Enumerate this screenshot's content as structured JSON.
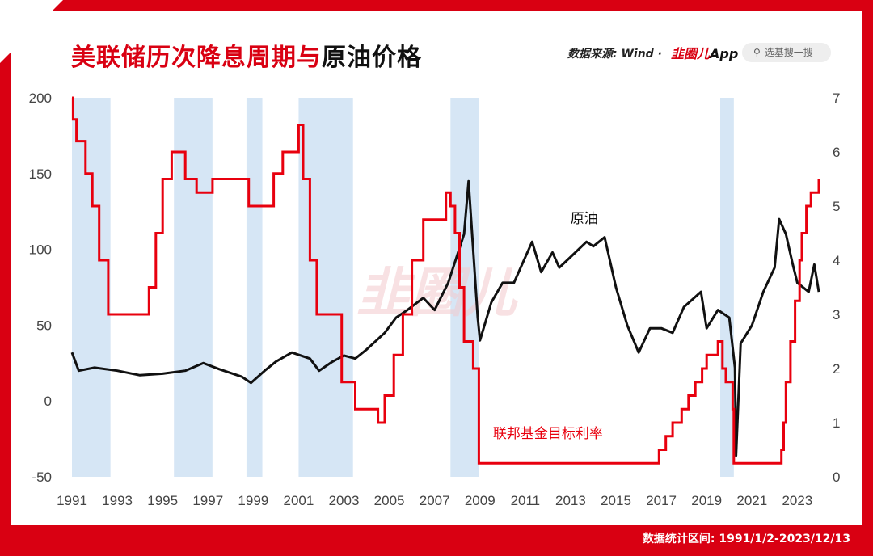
{
  "title_red": "美联储历次降息周期与",
  "title_black": "原油价格",
  "source": "数据来源: Wind · ",
  "brand_red": "韭圈儿",
  "brand_black": "App",
  "search_placeholder": "选基搜一搜",
  "footer": "数据统计区间: 1991/1/2-2023/12/13",
  "watermark": "韭圈儿",
  "colors": {
    "frame": "#d90012",
    "oil": "#111111",
    "rate": "#e8000e",
    "shade": "#d6e6f5"
  },
  "chart_data": {
    "type": "line",
    "x_range": [
      1991.0,
      2023.95
    ],
    "xticks": [
      "1991",
      "1993",
      "1995",
      "1997",
      "1999",
      "2001",
      "2003",
      "2005",
      "2007",
      "2009",
      "2011",
      "2013",
      "2015",
      "2017",
      "2019",
      "2021",
      "2023"
    ],
    "y_left": {
      "range": [
        -50,
        200
      ],
      "ticks": [
        "200",
        "150",
        "100",
        "50",
        "0",
        "-50"
      ]
    },
    "y_right": {
      "range": [
        0,
        7
      ],
      "ticks": [
        "7",
        "6",
        "5",
        "4",
        "3",
        "2",
        "1",
        "0"
      ]
    },
    "shaded_periods": [
      [
        1991.0,
        1992.7
      ],
      [
        1995.5,
        1997.2
      ],
      [
        1998.7,
        1999.4
      ],
      [
        2001.0,
        2003.4
      ],
      [
        2007.7,
        2008.95
      ],
      [
        2019.6,
        2020.2
      ]
    ],
    "series": [
      {
        "name": "原油",
        "axis": "left",
        "x": [
          1991.0,
          1991.3,
          1992.0,
          1993.0,
          1994.0,
          1995.0,
          1996.0,
          1996.8,
          1997.5,
          1998.5,
          1998.9,
          1999.5,
          2000.0,
          2000.7,
          2001.5,
          2001.9,
          2002.5,
          2003.0,
          2003.5,
          2004.0,
          2004.8,
          2005.3,
          2005.8,
          2006.5,
          2007.0,
          2007.6,
          2008.3,
          2008.5,
          2008.9,
          2009.0,
          2009.5,
          2010.0,
          2010.5,
          2011.3,
          2011.7,
          2012.2,
          2012.5,
          2013.0,
          2013.7,
          2014.0,
          2014.5,
          2015.0,
          2015.5,
          2016.0,
          2016.5,
          2017.0,
          2017.5,
          2018.0,
          2018.75,
          2019.0,
          2019.5,
          2020.0,
          2020.25,
          2020.3,
          2020.5,
          2021.0,
          2021.5,
          2022.0,
          2022.2,
          2022.5,
          2022.8,
          2023.0,
          2023.5,
          2023.75,
          2023.95
        ],
        "y": [
          32,
          20,
          22,
          20,
          17,
          18,
          20,
          25,
          21,
          16,
          12,
          20,
          26,
          32,
          28,
          20,
          26,
          30,
          28,
          34,
          45,
          55,
          60,
          68,
          60,
          78,
          110,
          145,
          55,
          40,
          65,
          78,
          78,
          105,
          85,
          98,
          88,
          95,
          105,
          102,
          108,
          75,
          50,
          32,
          48,
          48,
          45,
          62,
          72,
          48,
          60,
          55,
          22,
          -36,
          38,
          50,
          72,
          88,
          120,
          110,
          90,
          78,
          72,
          90,
          72
        ]
      },
      {
        "name": "联邦基金目标利率",
        "axis": "right",
        "x": [
          1991.0,
          1991.05,
          1991.2,
          1991.6,
          1991.9,
          1992.2,
          1992.6,
          1994.1,
          1994.4,
          1994.7,
          1995.0,
          1995.4,
          1996.0,
          1996.5,
          1997.2,
          1998.7,
          1998.8,
          1999.4,
          1999.9,
          2000.3,
          2001.0,
          2001.2,
          2001.5,
          2001.8,
          2002.9,
          2003.5,
          2004.5,
          2004.8,
          2005.2,
          2005.6,
          2006.0,
          2006.5,
          2007.5,
          2007.7,
          2007.9,
          2008.1,
          2008.3,
          2008.7,
          2008.95,
          2015.9,
          2016.9,
          2017.2,
          2017.5,
          2017.9,
          2018.2,
          2018.5,
          2018.8,
          2019.0,
          2019.5,
          2019.7,
          2019.85,
          2020.15,
          2020.2,
          2022.2,
          2022.3,
          2022.4,
          2022.5,
          2022.7,
          2022.9,
          2023.1,
          2023.2,
          2023.4,
          2023.6,
          2023.95
        ],
        "y": [
          7.0,
          6.6,
          6.2,
          5.6,
          5.0,
          4.0,
          3.0,
          3.0,
          3.5,
          4.5,
          5.5,
          6.0,
          5.5,
          5.25,
          5.5,
          5.5,
          5.0,
          5.0,
          5.6,
          6.0,
          6.5,
          5.5,
          4.0,
          3.0,
          1.75,
          1.25,
          1.0,
          1.5,
          2.25,
          3.0,
          4.0,
          4.75,
          5.25,
          5.0,
          4.5,
          3.5,
          2.5,
          2.0,
          0.25,
          0.25,
          0.5,
          0.75,
          1.0,
          1.25,
          1.5,
          1.75,
          2.0,
          2.25,
          2.5,
          2.0,
          1.75,
          1.25,
          0.25,
          0.25,
          0.5,
          1.0,
          1.75,
          2.5,
          3.25,
          4.0,
          4.5,
          5.0,
          5.25,
          5.5
        ]
      }
    ],
    "annotations": [
      {
        "text": "原油",
        "series": "原油"
      },
      {
        "text": "联邦基金目标利率",
        "series": "联邦基金目标利率"
      }
    ]
  }
}
